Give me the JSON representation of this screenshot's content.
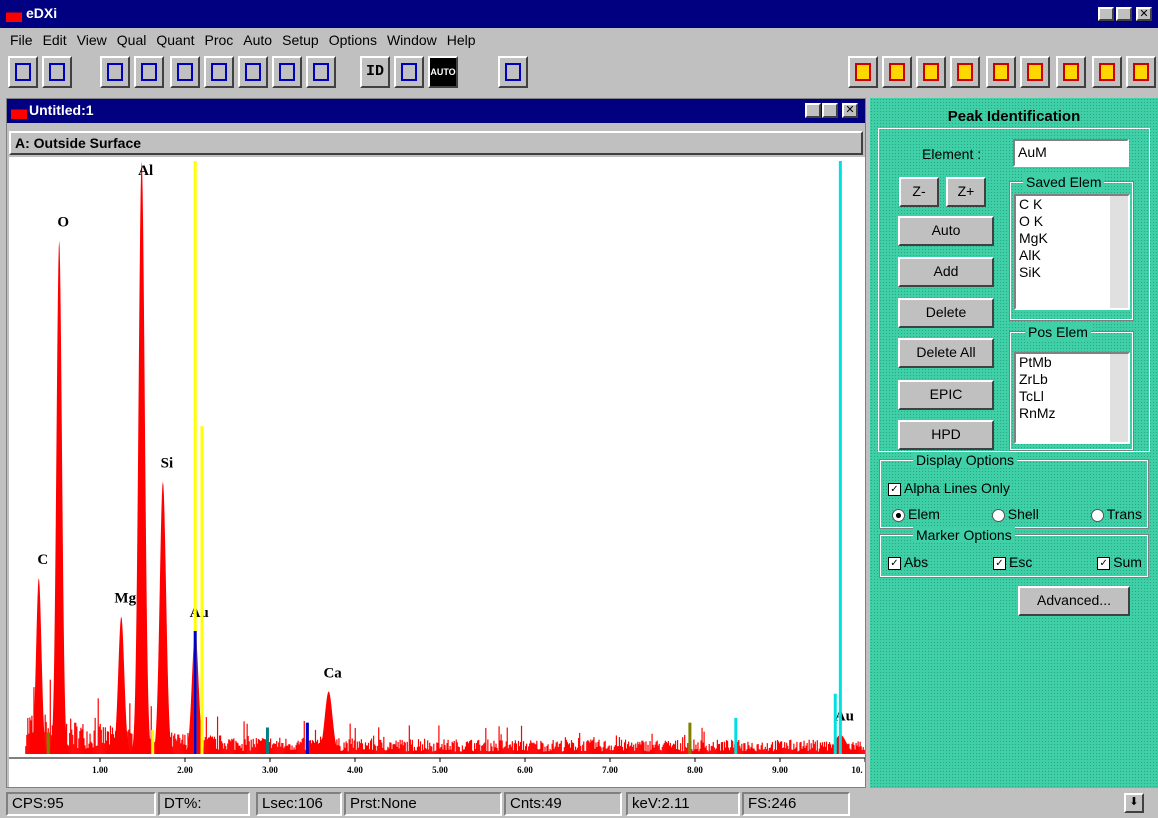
{
  "window": {
    "title": "eDXi"
  },
  "menu": [
    "File",
    "Edit",
    "View",
    "Qual",
    "Quant",
    "Proc",
    "Auto",
    "Setup",
    "Options",
    "Window",
    "Help"
  ],
  "toolbar": {
    "id": "ID",
    "auto": "AUTO"
  },
  "document": {
    "title": "Untitled:1",
    "sample": "A: Outside Surface"
  },
  "chart_data": {
    "type": "spectrum",
    "xlim": [
      0,
      10
    ],
    "ylim": [
      0,
      246
    ],
    "xticks": [
      {
        "value": 1,
        "label": "1.00"
      },
      {
        "value": 2,
        "label": "2.00"
      },
      {
        "value": 3,
        "label": "3.00"
      },
      {
        "value": 4,
        "label": "4.00"
      },
      {
        "value": 5,
        "label": "5.00"
      },
      {
        "value": 6,
        "label": "6.00"
      },
      {
        "value": 7,
        "label": "7.00"
      },
      {
        "value": 8,
        "label": "8.00"
      },
      {
        "value": 9,
        "label": "9.00"
      },
      {
        "value": 10,
        "label": "10."
      }
    ],
    "color": "#ff0000",
    "peaks": [
      {
        "label": "C",
        "kev": 0.28,
        "counts": 73
      },
      {
        "label": "O",
        "kev": 0.52,
        "counts": 213
      },
      {
        "label": "Mg",
        "kev": 1.25,
        "counts": 57
      },
      {
        "label": "Al",
        "kev": 1.49,
        "counts": 246
      },
      {
        "label": "Si",
        "kev": 1.74,
        "counts": 113
      },
      {
        "label": "Au",
        "kev": 2.12,
        "counts": 51
      },
      {
        "label": "Ca",
        "kev": 3.69,
        "counts": 26
      },
      {
        "label": "Au",
        "kev": 9.71,
        "counts": 8
      }
    ],
    "markers": [
      {
        "kev": 2.12,
        "counts": 246,
        "color": "#ffff00"
      },
      {
        "kev": 2.2,
        "counts": 136,
        "color": "#ffff00"
      },
      {
        "kev": 2.12,
        "counts": 51,
        "color": "#0000cc"
      },
      {
        "kev": 9.71,
        "counts": 246,
        "color": "#00e0e0"
      },
      {
        "kev": 9.65,
        "counts": 25,
        "color": "#00e0e0"
      },
      {
        "kev": 8.48,
        "counts": 15,
        "color": "#00e0e0"
      },
      {
        "kev": 7.94,
        "counts": 13,
        "color": "#808000"
      },
      {
        "kev": 2.97,
        "counts": 11,
        "color": "#008080"
      },
      {
        "kev": 3.44,
        "counts": 13,
        "color": "#0000cc"
      },
      {
        "kev": 0.39,
        "counts": 9,
        "color": "#808000"
      },
      {
        "kev": 1.62,
        "counts": 10,
        "color": "#ffff00"
      }
    ]
  },
  "panel": {
    "title": "Peak Identification",
    "element_label": "Element :",
    "element_value": "AuM",
    "buttons": [
      "Z-",
      "Z+",
      "Auto",
      "Add",
      "Delete",
      "Delete All",
      "EPIC",
      "HPD"
    ],
    "saved_title": "Saved Elem",
    "saved": [
      "C K",
      "O K",
      "MgK",
      "AlK",
      "SiK"
    ],
    "pos_title": "Pos Elem",
    "pos": [
      "PtMb",
      "ZrLb",
      "TcLl",
      "RnMz"
    ],
    "display_title": "Display Options",
    "alpha": "Alpha Lines Only",
    "radios": [
      "Elem",
      "Shell",
      "Trans"
    ],
    "marker_title": "Marker Options",
    "marker_checks": [
      "Abs",
      "Esc",
      "Sum"
    ],
    "advanced": "Advanced..."
  },
  "status": [
    "CPS:95",
    "DT%:",
    "Lsec:106",
    "Prst:None",
    "Cnts:49",
    "keV:2.11",
    "FS:246"
  ]
}
